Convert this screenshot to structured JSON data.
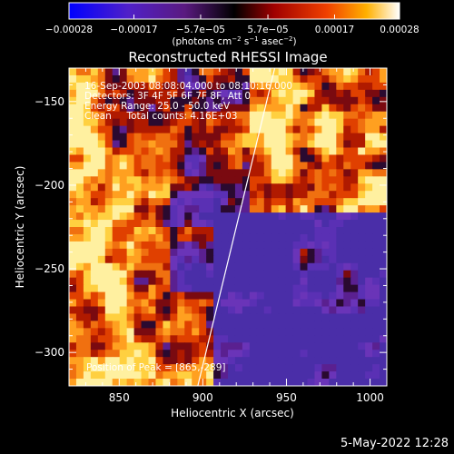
{
  "chart_data": {
    "type": "heatmap",
    "title": "Reconstructed RHESSI Image",
    "xlabel": "Heliocentric X (arcsec)",
    "ylabel": "Heliocentric Y (arcsec)",
    "xlim": [
      820,
      1010
    ],
    "ylim": [
      -320,
      -130
    ],
    "xticks": [
      850,
      900,
      950,
      1000
    ],
    "yticks": [
      -150,
      -200,
      -250,
      -300
    ],
    "x_tick_labels": [
      "850",
      "900",
      "950",
      "1000"
    ],
    "y_tick_labels": [
      "−150",
      "−200",
      "−250",
      "−300"
    ],
    "colorbar": {
      "range": [
        -0.00028,
        0.00028
      ],
      "tick_values": [
        -0.00028,
        -0.00017,
        -5.7e-05,
        5.7e-05,
        0.00017,
        0.00028
      ],
      "tick_labels": [
        "−0.00028",
        "−0.00017",
        "−5.7e−05",
        "5.7e−05",
        "0.00017",
        "0.00028"
      ],
      "unit_label_main": "(photons cm",
      "unit_label_exp1": "−2",
      "unit_label_mid": " s",
      "unit_label_exp2": "−1",
      "unit_label_after": " asec",
      "unit_label_exp3": "−2",
      "unit_label_end": ")"
    },
    "annotations": [
      "16-Sep-2003 08:08:04.000 to 08:10:16.000",
      "Detectors: 3F 4F 5F 6F 7F 8F, Att 0",
      "Energy Range: 25.0 - 50.0 keV",
      "Clean     Total counts: 4.16E+03"
    ],
    "peak_label": "Position of Peak = [865,-289]",
    "peak_position": [
      865,
      -289
    ],
    "limb_line": [
      [
        897,
        -320
      ],
      [
        943,
        -130
      ]
    ],
    "colors": {
      "background": "#000000",
      "foreground": "#ffffff",
      "colormap": [
        "#0000ff",
        "#5a2aa6",
        "#6a2fb0",
        "#702070",
        "#c02000",
        "#f06000",
        "#ffc020",
        "#ffffff"
      ]
    }
  },
  "footer": {
    "timestamp": "5-May-2022 12:28"
  }
}
